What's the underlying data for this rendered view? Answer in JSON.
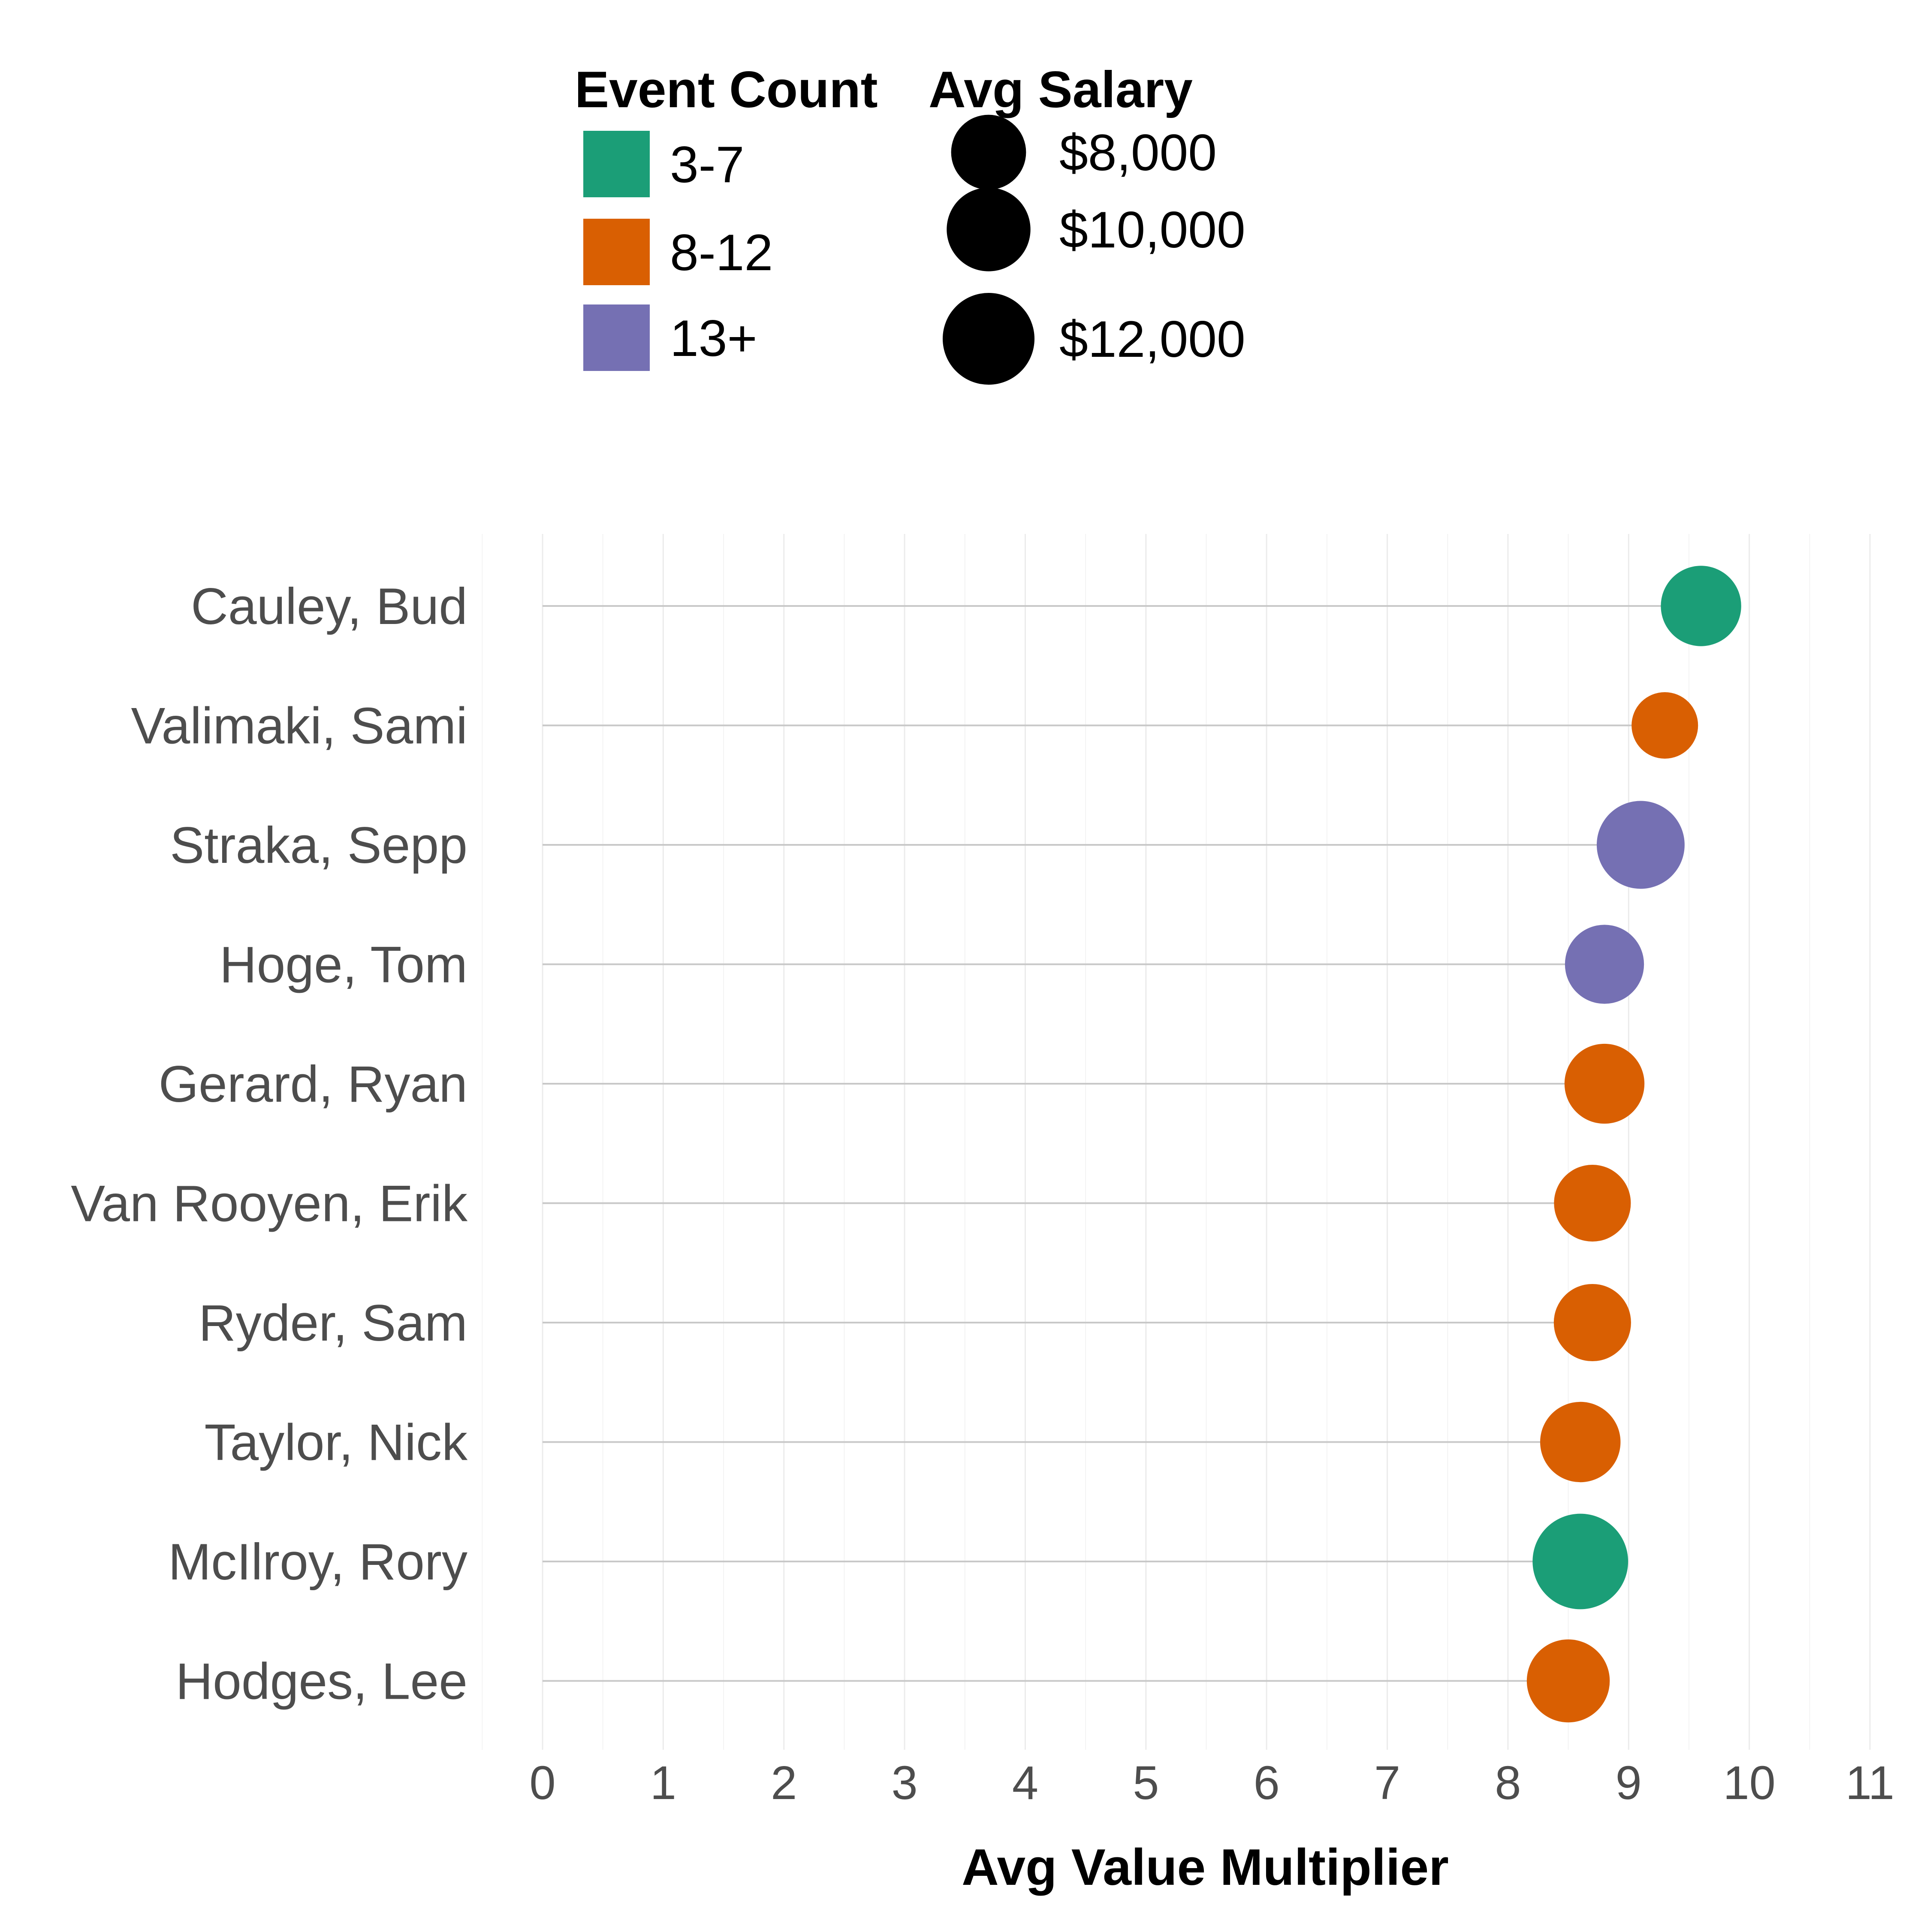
{
  "chart_data": {
    "type": "lollipop",
    "xlabel": "Avg Value Multiplier",
    "ylabel": "",
    "xlim": [
      0,
      11
    ],
    "x_ticks": [
      "0",
      "1",
      "2",
      "3",
      "4",
      "5",
      "6",
      "7",
      "8",
      "9",
      "10",
      "11"
    ],
    "grid": true,
    "legend_placement": "top",
    "categories": [
      "Cauley, Bud",
      "Valimaki, Sami",
      "Straka, Sepp",
      "Hoge, Tom",
      "Gerard, Ryan",
      "Van Rooyen, Erik",
      "Ryder, Sam",
      "Taylor, Nick",
      "McIlroy, Rory",
      "Hodges, Lee"
    ],
    "values": [
      9.6,
      9.3,
      9.1,
      8.8,
      8.8,
      8.7,
      8.7,
      8.6,
      8.6,
      8.5
    ],
    "event_group": [
      "3-7",
      "8-12",
      "13+",
      "13+",
      "8-12",
      "8-12",
      "8-12",
      "8-12",
      "3-7",
      "8-12"
    ],
    "avg_salary": [
      9200,
      6300,
      11000,
      8900,
      9100,
      8400,
      8500,
      9200,
      13000,
      9800
    ],
    "color_legend": {
      "title": "Event Count",
      "items": [
        {
          "label": "3-7",
          "color": "#1b9e77"
        },
        {
          "label": "8-12",
          "color": "#d95f02"
        },
        {
          "label": "13+",
          "color": "#7570b3"
        }
      ]
    },
    "size_legend": {
      "title": "Avg Salary",
      "items": [
        {
          "label": "$8,000",
          "value": 8000
        },
        {
          "label": "$10,000",
          "value": 10000
        },
        {
          "label": "$12,000",
          "value": 12000
        }
      ]
    }
  }
}
